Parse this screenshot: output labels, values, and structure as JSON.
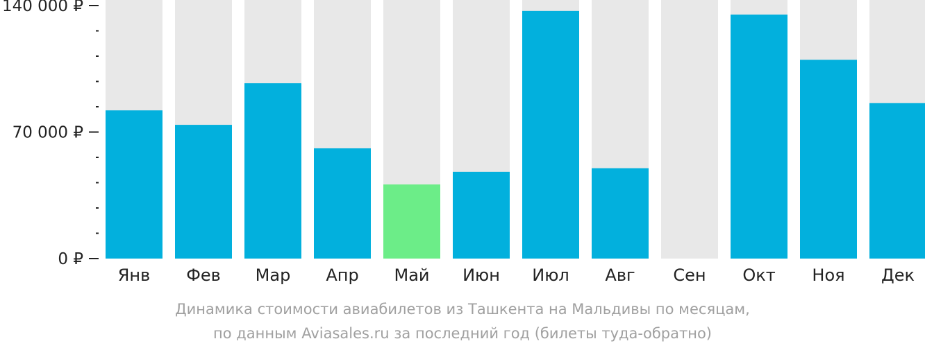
{
  "chart_data": {
    "type": "bar",
    "categories": [
      "Янв",
      "Фев",
      "Мар",
      "Апр",
      "Май",
      "Июн",
      "Июл",
      "Авг",
      "Сен",
      "Окт",
      "Ноя",
      "Дек"
    ],
    "values": [
      82000,
      74000,
      97000,
      61000,
      41000,
      48000,
      137000,
      50000,
      null,
      135000,
      110000,
      86000
    ],
    "ylim": [
      0,
      140000
    ],
    "y_ticks": [
      {
        "value": 0,
        "label": "0 ₽"
      },
      {
        "value": 70000,
        "label": "70 000 ₽"
      },
      {
        "value": 140000,
        "label": "140 000 ₽"
      }
    ],
    "minor_tick_step": 14000,
    "highlight_category": "Май",
    "colors": {
      "bar": "#02b0dd",
      "highlight": "#6ced88",
      "background_column": "#e8e8e8",
      "axis_text": "#222222",
      "caption": "#a0a0a0"
    }
  },
  "caption": {
    "line1": "Динамика стоимости авиабилетов из Ташкента на Мальдивы по месяцам,",
    "line2": "по данным Aviasales.ru за последний год (билеты туда-обратно)"
  }
}
